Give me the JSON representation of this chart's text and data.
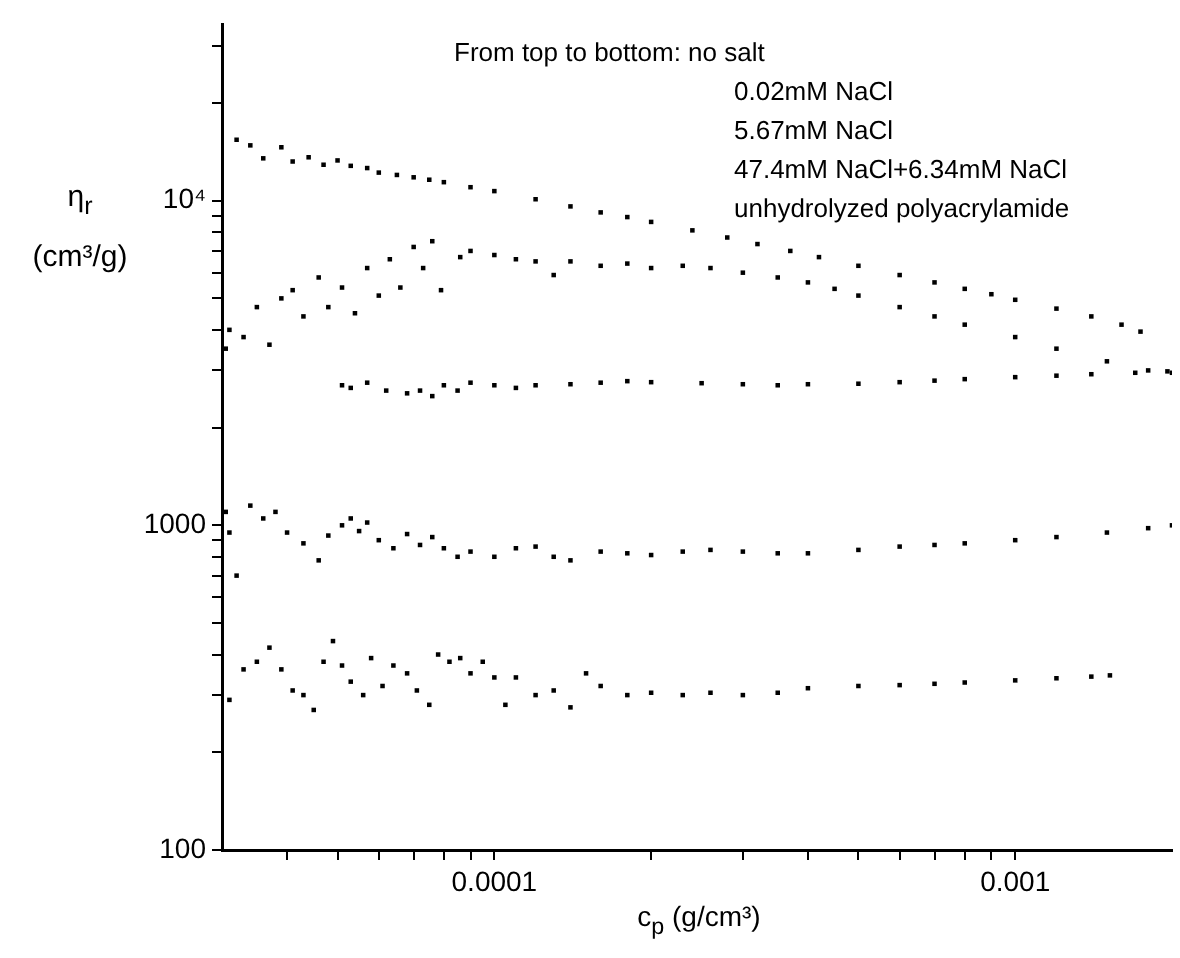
{
  "chart_data": {
    "type": "scatter",
    "xlabel": "c$_{p}$ (g/cm³)",
    "ylabel": "η$_{r}$ (cm³/g)",
    "log": "xy",
    "marker": "square",
    "xlim": [
      3e-05,
      0.002
    ],
    "ylim": [
      100,
      35000
    ],
    "xticks": [
      {
        "value": 4e-05,
        "label": null
      },
      {
        "value": 5e-05,
        "label": null
      },
      {
        "value": 6e-05,
        "label": null
      },
      {
        "value": 7e-05,
        "label": null
      },
      {
        "value": 8e-05,
        "label": null
      },
      {
        "value": 9e-05,
        "label": null
      },
      0.0001,
      {
        "value": 0.0002,
        "label": null
      },
      {
        "value": 0.0003,
        "label": null
      },
      {
        "value": 0.0004,
        "label": null
      },
      {
        "value": 0.0005,
        "label": null
      },
      {
        "value": 0.0006,
        "label": null
      },
      {
        "value": 0.0007,
        "label": null
      },
      {
        "value": 0.0008,
        "label": null
      },
      {
        "value": 0.0009,
        "label": null
      },
      0.001
    ],
    "yticks": [
      100,
      {
        "value": 200,
        "label": null
      },
      {
        "value": 300,
        "label": null
      },
      {
        "value": 400,
        "label": null
      },
      {
        "value": 500,
        "label": null
      },
      {
        "value": 600,
        "label": null
      },
      {
        "value": 700,
        "label": null
      },
      {
        "value": 800,
        "label": null
      },
      {
        "value": 900,
        "label": null
      },
      1000,
      {
        "value": 2000,
        "label": null
      },
      {
        "value": 3000,
        "label": null
      },
      {
        "value": 4000,
        "label": null
      },
      {
        "value": 5000,
        "label": null
      },
      {
        "value": 6000,
        "label": null
      },
      {
        "value": 7000,
        "label": null
      },
      {
        "value": 8000,
        "label": null
      },
      {
        "value": 9000,
        "label": null
      },
      {
        "value": 10000,
        "label": "10⁴"
      },
      {
        "value": 20000,
        "label": null
      },
      {
        "value": 30000,
        "label": null
      }
    ],
    "annotations": [
      "From top to bottom: no salt",
      "0.02mM NaCl",
      "5.67mM NaCl",
      "47.4mM NaCl+6.34mM NaCl",
      "unhydrolyzed polyacrylamide"
    ],
    "series": [
      {
        "color": "#000000",
        "x": [
          3.2e-05,
          3.4e-05,
          3.6e-05,
          3.9e-05,
          4.1e-05,
          4.4e-05,
          4.7e-05,
          5e-05,
          5.3e-05,
          5.7e-05,
          6e-05,
          6.5e-05,
          7e-05,
          7.5e-05,
          8e-05,
          9e-05,
          0.0001,
          0.00012,
          0.00014,
          0.00016,
          0.00018,
          0.0002,
          0.00024,
          0.00028,
          0.00032,
          0.00037,
          0.00042,
          0.0005,
          0.0006,
          0.0007,
          0.0008,
          0.0009,
          0.001,
          0.0012,
          0.0014,
          0.0016,
          0.00174
        ],
        "values": [
          15400,
          14800,
          13500,
          14600,
          13200,
          13600,
          12900,
          13300,
          12800,
          12600,
          12200,
          12000,
          11800,
          11600,
          11400,
          11000,
          10700,
          10100,
          9600,
          9200,
          8900,
          8600,
          8100,
          7700,
          7350,
          7000,
          6700,
          6300,
          5900,
          5600,
          5350,
          5150,
          4950,
          4650,
          4400,
          4150,
          3950
        ]
      },
      {
        "color": "#000000",
        "x": [
          3.05e-05,
          3.1e-05,
          3.3e-05,
          3.5e-05,
          3.7e-05,
          3.9e-05,
          4.1e-05,
          4.3e-05,
          4.6e-05,
          4.8e-05,
          5.1e-05,
          5.4e-05,
          5.7e-05,
          6e-05,
          6.3e-05,
          6.6e-05,
          7e-05,
          7.3e-05,
          7.6e-05,
          7.9e-05,
          8.6e-05,
          9e-05,
          0.0001,
          0.00011,
          0.00012,
          0.00013,
          0.00014,
          0.00016,
          0.00018,
          0.0002,
          0.00023,
          0.00026,
          0.0003,
          0.00035,
          0.0004,
          0.00045,
          0.0005,
          0.0006,
          0.0007,
          0.0008,
          0.001,
          0.0012,
          0.0015,
          0.0018,
          0.002
        ],
        "values": [
          3500,
          4000,
          3800,
          4700,
          3600,
          5000,
          5300,
          4400,
          5800,
          4700,
          5400,
          4500,
          6200,
          5100,
          6600,
          5400,
          7200,
          6200,
          7500,
          5300,
          6700,
          7000,
          6800,
          6600,
          6500,
          5900,
          6500,
          6300,
          6400,
          6200,
          6300,
          6200,
          6000,
          5800,
          5600,
          5350,
          5100,
          4700,
          4400,
          4150,
          3800,
          3500,
          3200,
          3000,
          2950
        ]
      },
      {
        "color": "#000000",
        "x": [
          5.1e-05,
          5.3e-05,
          5.7e-05,
          6.2e-05,
          6.8e-05,
          7.2e-05,
          7.6e-05,
          8e-05,
          8.5e-05,
          9e-05,
          0.0001,
          0.00011,
          0.00012,
          0.00014,
          0.00016,
          0.00018,
          0.0002,
          0.00025,
          0.0003,
          0.00035,
          0.0004,
          0.0005,
          0.0006,
          0.0007,
          0.0008,
          0.001,
          0.0012,
          0.0014,
          0.0017,
          0.00196
        ],
        "values": [
          2700,
          2650,
          2750,
          2600,
          2550,
          2600,
          2500,
          2700,
          2600,
          2750,
          2700,
          2650,
          2700,
          2720,
          2750,
          2780,
          2760,
          2740,
          2720,
          2700,
          2720,
          2730,
          2760,
          2790,
          2820,
          2860,
          2890,
          2920,
          2950,
          2980
        ]
      },
      {
        "color": "#000000",
        "x": [
          3.05e-05,
          3.1e-05,
          3.2e-05,
          3.4e-05,
          3.6e-05,
          3.8e-05,
          4e-05,
          4.3e-05,
          4.6e-05,
          4.8e-05,
          5.1e-05,
          5.3e-05,
          5.5e-05,
          5.7e-05,
          6e-05,
          6.4e-05,
          6.8e-05,
          7.2e-05,
          7.6e-05,
          8e-05,
          8.5e-05,
          9e-05,
          0.0001,
          0.00011,
          0.00012,
          0.00013,
          0.00014,
          0.00016,
          0.00018,
          0.0002,
          0.00023,
          0.00026,
          0.0003,
          0.00035,
          0.0004,
          0.0005,
          0.0006,
          0.0007,
          0.0008,
          0.001,
          0.0012,
          0.0015,
          0.0018,
          0.002
        ],
        "values": [
          1100,
          950,
          700,
          1150,
          1050,
          1100,
          950,
          880,
          780,
          930,
          1000,
          1050,
          960,
          1020,
          900,
          850,
          940,
          870,
          920,
          850,
          800,
          830,
          800,
          850,
          860,
          800,
          780,
          830,
          820,
          810,
          830,
          840,
          830,
          820,
          820,
          840,
          860,
          870,
          880,
          900,
          920,
          950,
          980,
          1000
        ]
      },
      {
        "color": "#000000",
        "x": [
          3.1e-05,
          3.3e-05,
          3.5e-05,
          3.7e-05,
          3.9e-05,
          4.1e-05,
          4.3e-05,
          4.5e-05,
          4.7e-05,
          4.9e-05,
          5.1e-05,
          5.3e-05,
          5.6e-05,
          5.8e-05,
          6.1e-05,
          6.4e-05,
          6.8e-05,
          7.1e-05,
          7.5e-05,
          7.8e-05,
          8.2e-05,
          8.6e-05,
          9e-05,
          9.5e-05,
          0.0001,
          0.000105,
          0.00011,
          0.00012,
          0.00013,
          0.00014,
          0.00015,
          0.00016,
          0.00018,
          0.0002,
          0.00023,
          0.00026,
          0.0003,
          0.00035,
          0.0004,
          0.0005,
          0.0006,
          0.0007,
          0.0008,
          0.001,
          0.0012,
          0.0014,
          0.00152
        ],
        "values": [
          290,
          360,
          380,
          420,
          360,
          310,
          300,
          270,
          380,
          440,
          370,
          330,
          300,
          390,
          320,
          370,
          350,
          310,
          280,
          400,
          380,
          390,
          350,
          380,
          340,
          280,
          340,
          300,
          310,
          275,
          350,
          320,
          300,
          305,
          300,
          305,
          300,
          305,
          315,
          320,
          322,
          325,
          328,
          333,
          338,
          342,
          345
        ]
      }
    ]
  }
}
